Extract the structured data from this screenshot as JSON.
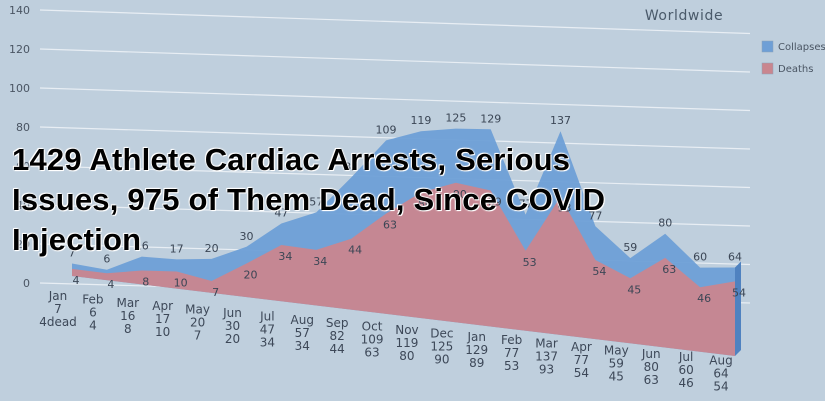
{
  "chart_data": {
    "type": "area",
    "title": "Worldwide",
    "categories": [
      "Jan",
      "Feb",
      "Mar",
      "Apr",
      "May",
      "Jun",
      "Jul",
      "Aug",
      "Sep",
      "Oct",
      "Nov",
      "Dec",
      "Jan",
      "Feb",
      "Mar",
      "Apr",
      "May",
      "Jun",
      "Jul",
      "Aug"
    ],
    "series": [
      {
        "name": "Collapses",
        "values": [
          7,
          6,
          16,
          17,
          20,
          30,
          47,
          57,
          82,
          109,
          119,
          125,
          129,
          77,
          137,
          77,
          59,
          80,
          60,
          64
        ]
      },
      {
        "name": "Deaths",
        "values": [
          4,
          4,
          8,
          10,
          7,
          20,
          34,
          34,
          44,
          63,
          80,
          90,
          89,
          53,
          93,
          54,
          45,
          63,
          46,
          54
        ]
      }
    ],
    "ylim": [
      0,
      140
    ],
    "yticks": [
      0,
      20,
      40,
      60,
      80,
      100,
      120,
      140
    ],
    "legend_position": "right",
    "colors": {
      "collapses": "#6e9fd6",
      "deaths": "#c9868f"
    },
    "bottom_labels": [
      {
        "month": "Jan",
        "c": "7",
        "d": "4dead"
      },
      {
        "month": "Feb",
        "c": "6",
        "d": "4"
      },
      {
        "month": "Mar",
        "c": "16",
        "d": "8"
      },
      {
        "month": "Apr",
        "c": "17",
        "d": "10"
      },
      {
        "month": "May",
        "c": "20",
        "d": "7"
      },
      {
        "month": "Jun",
        "c": "30",
        "d": "20"
      },
      {
        "month": "Jul",
        "c": "47",
        "d": "34"
      },
      {
        "month": "Aug",
        "c": "57",
        "d": "34"
      },
      {
        "month": "Sep",
        "c": "82",
        "d": "44"
      },
      {
        "month": "Oct",
        "c": "109",
        "d": "63"
      },
      {
        "month": "Nov",
        "c": "119",
        "d": "80"
      },
      {
        "month": "Dec",
        "c": "125",
        "d": "90"
      },
      {
        "month": "Jan",
        "c": "129",
        "d": "89"
      },
      {
        "month": "Feb",
        "c": "77",
        "d": "53"
      },
      {
        "month": "Mar",
        "c": "137",
        "d": "93"
      },
      {
        "month": "Apr",
        "c": "77",
        "d": "54"
      },
      {
        "month": "May",
        "c": "59",
        "d": "45"
      },
      {
        "month": "Jun",
        "c": "80",
        "d": "63"
      },
      {
        "month": "Jul",
        "c": "60",
        "d": "46"
      },
      {
        "month": "Aug",
        "c": "64",
        "d": "54"
      }
    ]
  },
  "overlay": {
    "line1": "1429 Athlete Cardiac Arrests, Serious",
    "line2": "Issues, 975 of Them Dead, Since COVID",
    "line3": "Injection"
  }
}
